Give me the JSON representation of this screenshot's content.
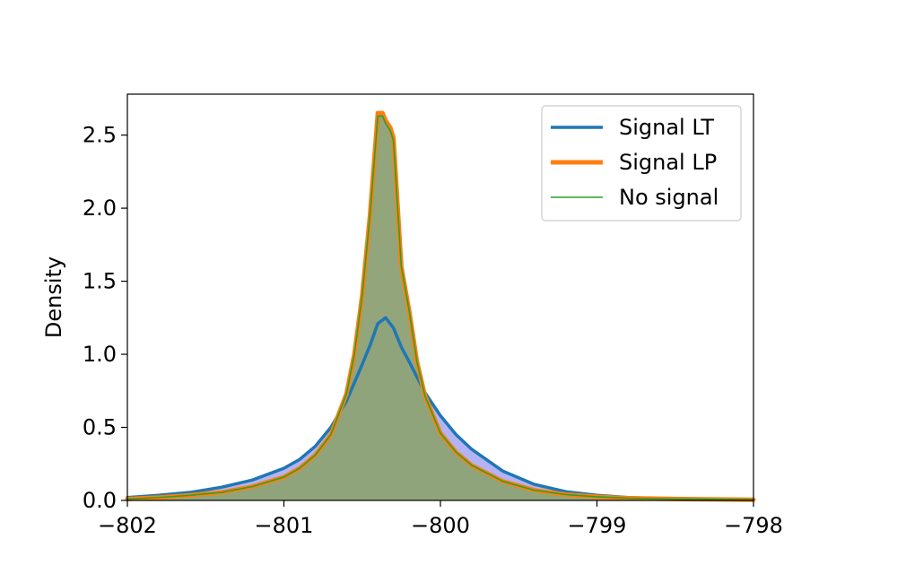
{
  "chart_data": {
    "type": "area",
    "title": "",
    "xlabel": "",
    "ylabel": "Density",
    "xlim": [
      -802,
      -798
    ],
    "ylim": [
      0,
      2.78
    ],
    "x_ticks": [
      -802,
      -801,
      -800,
      -799,
      -798
    ],
    "x_tick_labels": [
      "−802",
      "−801",
      "−800",
      "−799",
      "−798"
    ],
    "y_ticks": [
      0.0,
      0.5,
      1.0,
      1.5,
      2.0,
      2.5
    ],
    "y_tick_labels": [
      "0.0",
      "0.5",
      "1.0",
      "1.5",
      "2.0",
      "2.5"
    ],
    "grid": false,
    "legend_position": "top-right",
    "series": [
      {
        "name": "Signal LT",
        "color": "#1f77b4",
        "fill": "#b3b3f5",
        "line_width": "thick",
        "x": [
          -802.0,
          -801.8,
          -801.6,
          -801.4,
          -801.2,
          -801.0,
          -800.9,
          -800.8,
          -800.7,
          -800.6,
          -800.5,
          -800.45,
          -800.4,
          -800.35,
          -800.3,
          -800.25,
          -800.2,
          -800.1,
          -800.0,
          -799.9,
          -799.8,
          -799.6,
          -799.4,
          -799.2,
          -799.0,
          -798.8,
          -798.5,
          -798.0
        ],
        "y": [
          0.02,
          0.035,
          0.055,
          0.09,
          0.14,
          0.22,
          0.28,
          0.37,
          0.5,
          0.68,
          0.93,
          1.06,
          1.21,
          1.25,
          1.18,
          1.05,
          0.95,
          0.74,
          0.58,
          0.45,
          0.35,
          0.2,
          0.11,
          0.06,
          0.035,
          0.02,
          0.01,
          0.005
        ]
      },
      {
        "name": "Signal LP",
        "color": "#ff7f0e",
        "fill": "#b5c87a",
        "line_width": "thicker",
        "x": [
          -802.0,
          -801.8,
          -801.6,
          -801.4,
          -801.2,
          -801.0,
          -800.9,
          -800.8,
          -800.7,
          -800.6,
          -800.55,
          -800.5,
          -800.45,
          -800.4,
          -800.37,
          -800.35,
          -800.32,
          -800.3,
          -800.25,
          -800.2,
          -800.15,
          -800.1,
          -800.0,
          -799.9,
          -799.8,
          -799.6,
          -799.4,
          -799.2,
          -799.0,
          -798.8,
          -798.5,
          -798.0
        ],
        "y": [
          0.01,
          0.02,
          0.035,
          0.055,
          0.095,
          0.16,
          0.22,
          0.31,
          0.45,
          0.73,
          1.0,
          1.4,
          1.95,
          2.65,
          2.65,
          2.6,
          2.55,
          2.48,
          1.6,
          1.3,
          0.95,
          0.72,
          0.46,
          0.33,
          0.24,
          0.13,
          0.07,
          0.04,
          0.025,
          0.015,
          0.01,
          0.005
        ]
      },
      {
        "name": "No signal",
        "color": "#2ca02c",
        "fill": "#8a9e78",
        "line_width": "thin",
        "x": [
          -802.0,
          -801.8,
          -801.6,
          -801.4,
          -801.2,
          -801.0,
          -800.9,
          -800.8,
          -800.7,
          -800.6,
          -800.55,
          -800.5,
          -800.45,
          -800.4,
          -800.37,
          -800.35,
          -800.32,
          -800.3,
          -800.25,
          -800.2,
          -800.15,
          -800.1,
          -800.0,
          -799.9,
          -799.8,
          -799.6,
          -799.4,
          -799.2,
          -799.0,
          -798.8,
          -798.5,
          -798.0
        ],
        "y": [
          0.01,
          0.02,
          0.035,
          0.055,
          0.095,
          0.16,
          0.22,
          0.31,
          0.45,
          0.73,
          1.0,
          1.4,
          1.95,
          2.63,
          2.63,
          2.58,
          2.53,
          2.46,
          1.6,
          1.3,
          0.95,
          0.72,
          0.46,
          0.33,
          0.24,
          0.13,
          0.07,
          0.04,
          0.025,
          0.015,
          0.01,
          0.005
        ]
      }
    ]
  }
}
